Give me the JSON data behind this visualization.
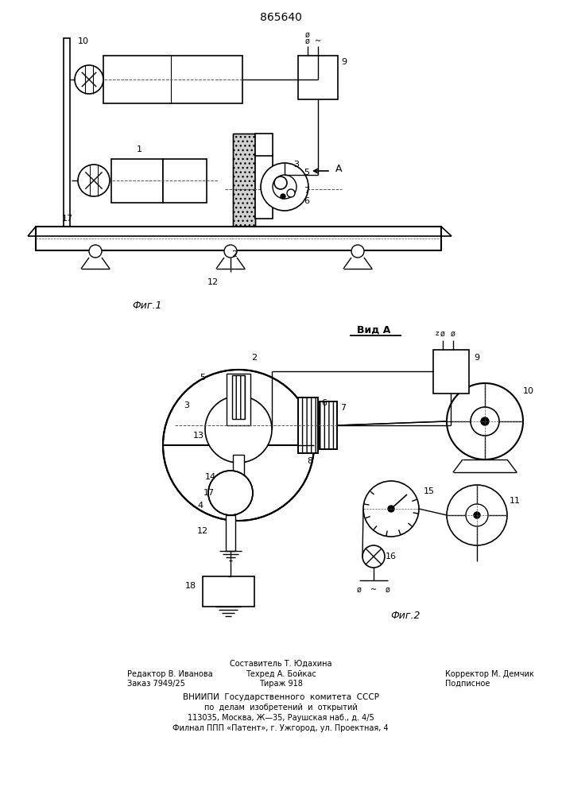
{
  "title": "865640",
  "fig1_label": "Фиг.1",
  "fig2_label": "Фиг.2",
  "vid_a_label": "Вид A",
  "background": "#ffffff",
  "footer_col1_line1": "Редактор В. Иванова",
  "footer_col1_line2": "Заказ 7949/25",
  "footer_col2_line0": "Составитель Т. Юдахина",
  "footer_col2_line1": "Техред А. Бойкас",
  "footer_col2_line2": "Тираж 918",
  "footer_col3_line1": "Корректор М. Демчик",
  "footer_col3_line2": "Подписное",
  "footer_vniip1": "ВНИИПИ  Государственного  комитета  СССР",
  "footer_vniip2": "по  делам  изобретений  и  открытий",
  "footer_vniip3": "113035, Москва, Ж—35, Раушская наб., д. 4/5",
  "footer_vniip4": "Филнал ППП «Патент», г. Ужгород, ул. Проектная, 4"
}
